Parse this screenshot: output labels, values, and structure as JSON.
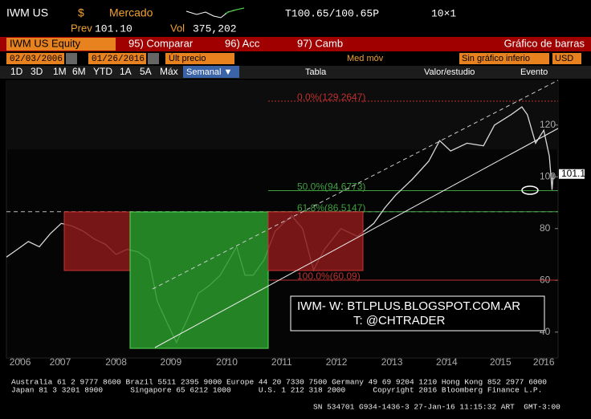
{
  "header": {
    "ticker": "IWM US",
    "currency": "$",
    "market": "Mercado",
    "quote": "T100.65/100.65P",
    "size": "10×1",
    "prev_label": "Prev",
    "prev": "101.10",
    "vol_label": "Vol",
    "vol": "375,202"
  },
  "menu": {
    "security": "IWM US Equity",
    "compare": "95) Comparar",
    "actions": "96) Acc",
    "change": "97) Camb",
    "chart_name": "Gráfico de barras"
  },
  "inputs": {
    "start": "02/03/2006",
    "end": "01/26/2016",
    "field": "Últ precio",
    "moving_avg": "Med móv",
    "lower": "Sin gráfico inferio",
    "ccy": "USD"
  },
  "toolbar": {
    "ranges": [
      "1D",
      "3D",
      "1M",
      "6M",
      "YTD",
      "1A",
      "5A",
      "Máx"
    ],
    "period": "Semanal ▼",
    "table": "Tabla",
    "study": "Valor/estudio",
    "event": "Evento"
  },
  "chart_data": {
    "type": "line",
    "x": [
      2006.1,
      2006.3,
      2006.5,
      2006.7,
      2006.9,
      2007.1,
      2007.3,
      2007.5,
      2007.7,
      2007.9,
      2008.1,
      2008.3,
      2008.5,
      2008.7,
      2008.85,
      2009.0,
      2009.2,
      2009.4,
      2009.6,
      2009.8,
      2010.0,
      2010.3,
      2010.45,
      2010.6,
      2010.8,
      2011.0,
      2011.3,
      2011.5,
      2011.7,
      2011.9,
      2012.2,
      2012.5,
      2012.8,
      2013.0,
      2013.2,
      2013.5,
      2013.8,
      2014.0,
      2014.2,
      2014.5,
      2014.8,
      2015.0,
      2015.3,
      2015.5,
      2015.6,
      2015.75,
      2015.9,
      2016.0,
      2016.05,
      2016.07
    ],
    "series": [
      {
        "name": "IWM US",
        "color": "#d8d8d8",
        "values": [
          69,
          72,
          75,
          73,
          78,
          82,
          81,
          79,
          76,
          74,
          70,
          72,
          71,
          68,
          52,
          45,
          36,
          45,
          55,
          58,
          62,
          73,
          62,
          62,
          68,
          79,
          85,
          80,
          64,
          72,
          80,
          77,
          82,
          88,
          93,
          99,
          106,
          114,
          110,
          113,
          112,
          120,
          124,
          127,
          124,
          113,
          118,
          108,
          95,
          101.1
        ]
      }
    ],
    "last_label": "101.10",
    "xlim": [
      2006.1,
      2016.16
    ],
    "ylim": [
      30,
      137
    ],
    "yticks": [
      40,
      60,
      80,
      100,
      120
    ],
    "xticks": [
      {
        "value": 2006.35,
        "label": "2006"
      },
      {
        "value": 2007.08,
        "label": "2007"
      },
      {
        "value": 2008.1,
        "label": "2008"
      },
      {
        "value": 2009.1,
        "label": "2009"
      },
      {
        "value": 2010.12,
        "label": "2010"
      },
      {
        "value": 2011.12,
        "label": "2011"
      },
      {
        "value": 2012.12,
        "label": "2012"
      },
      {
        "value": 2013.13,
        "label": "2013"
      },
      {
        "value": 2014.13,
        "label": "2014"
      },
      {
        "value": 2015.11,
        "label": "2015"
      },
      {
        "value": 2015.9,
        "label": "2016"
      }
    ],
    "fib": [
      {
        "value": 129.2647,
        "label": "0.0%(129.2647)",
        "color": "#c03030"
      },
      {
        "value": 94.6773,
        "label": "50.0%(94.6773)",
        "color": "#40a040"
      },
      {
        "value": 86.5147,
        "label": "61.8%(86.5147)",
        "color": "#40a040"
      },
      {
        "value": 60.09,
        "label": "100.0%(60.09)",
        "color": "#c03030"
      }
    ],
    "annotation": [
      "IWM- W: BTLPLUS.BLOGSPOT.COM.AR",
      "T: @CHTRADER"
    ]
  },
  "footer": [
    "Australia 61 2 9777 8600 Brazil 5511 2395 9000 Europe 44 20 7330 7500 Germany 49 69 9204 1210 Hong Kong 852 2977 6000",
    "Japan 81 3 3201 8900      Singapore 65 6212 1000      U.S. 1 212 318 2000      Copyright 2016 Bloomberg Finance L.P.",
    "SN 534701 G934-1436-3 27-Jan-16 11:15:32 ART  GMT-3:00"
  ]
}
